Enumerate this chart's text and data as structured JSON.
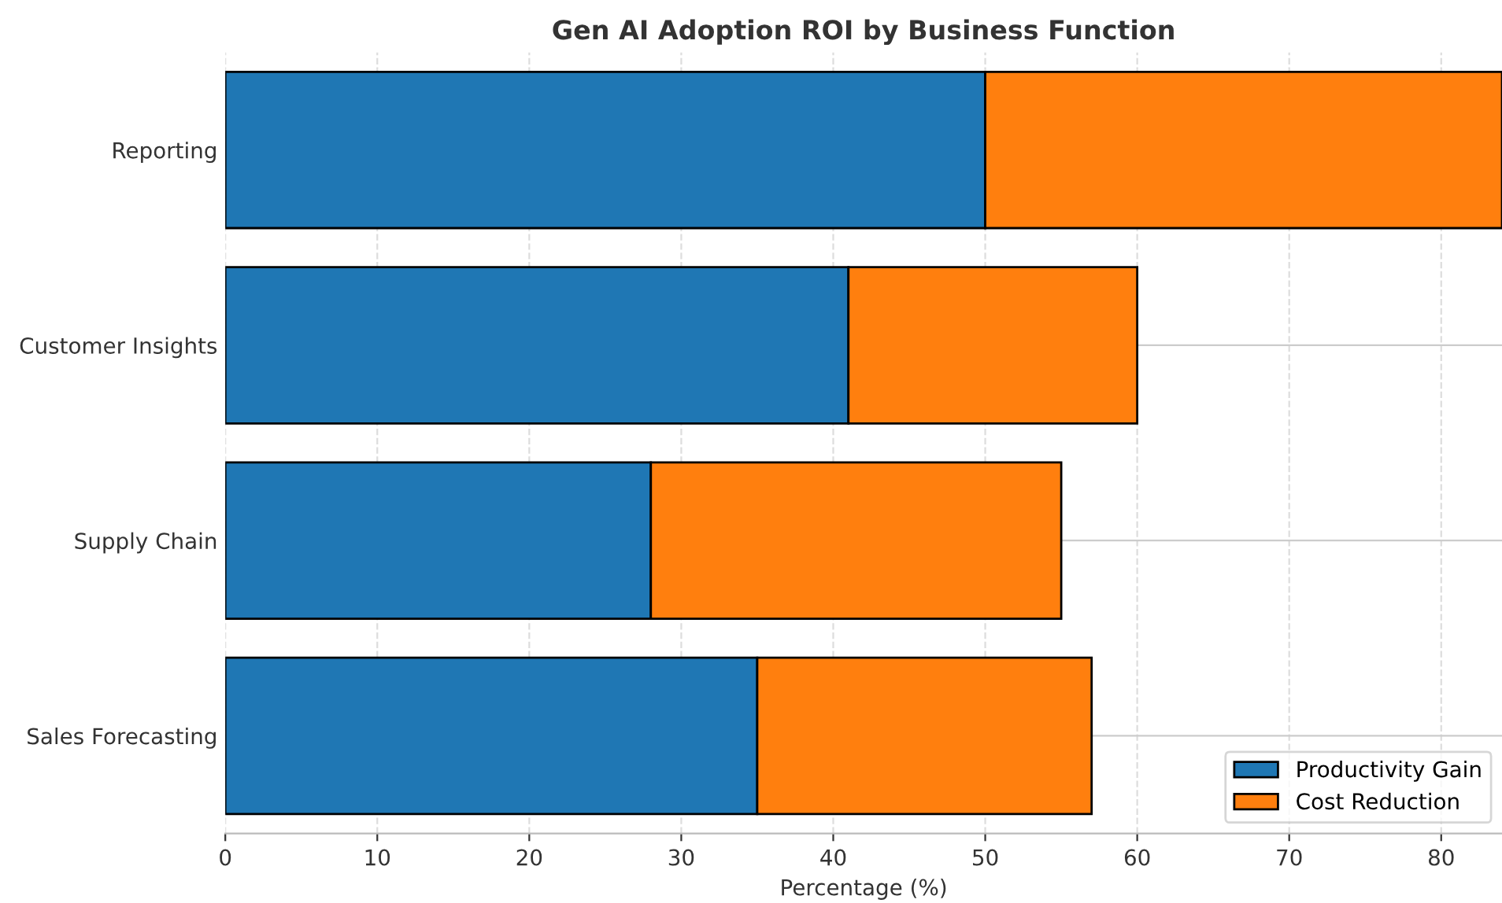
{
  "chart_data": {
    "type": "bar",
    "orientation": "horizontal",
    "stacked": true,
    "title": "Gen AI Adoption ROI by Business Function",
    "xlabel": "Percentage (%)",
    "categories": [
      "Reporting",
      "Customer Insights",
      "Supply Chain",
      "Sales Forecasting"
    ],
    "series": [
      {
        "name": "Productivity Gain",
        "color": "#1f77b4",
        "values": [
          50,
          41,
          28,
          35
        ]
      },
      {
        "name": "Cost Reduction",
        "color": "#ff7f0e",
        "values": [
          34,
          19,
          27,
          22
        ]
      }
    ],
    "xlim": [
      0,
      84
    ],
    "xticks": [
      0,
      10,
      20,
      30,
      40,
      50,
      60,
      70,
      80
    ],
    "grid": true,
    "legend": "bottom right"
  }
}
